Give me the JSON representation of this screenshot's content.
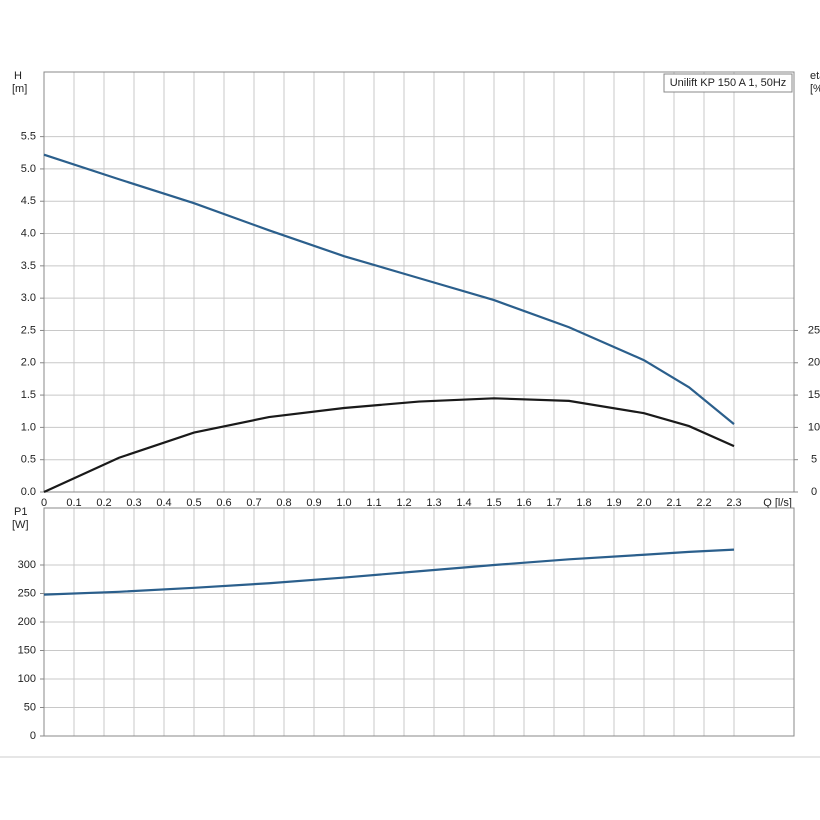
{
  "chart_data": [
    {
      "type": "line",
      "annotation": "Unilift KP 150 A 1, 50Hz",
      "ylabel": "H",
      "yunit": "[m]",
      "y2label": "eta",
      "y2unit": "[%]",
      "xlabel": "Q [l/s]",
      "xlim": [
        0,
        2.5
      ],
      "xticks": [
        0,
        0.1,
        0.2,
        0.3,
        0.4,
        0.5,
        0.6,
        0.7,
        0.8,
        0.9,
        {
          "value": 1,
          "label": "1.0"
        },
        1.1,
        1.2,
        1.3,
        1.4,
        1.5,
        1.6,
        1.7,
        1.8,
        1.9,
        {
          "value": 2,
          "label": "2.0"
        },
        2.1,
        2.2,
        2.3
      ],
      "ylim": [
        0,
        6.5
      ],
      "yticks": [
        {
          "value": 0,
          "label": "0.0"
        },
        0.5,
        {
          "value": 1,
          "label": "1.0"
        },
        1.5,
        {
          "value": 2,
          "label": "2.0"
        },
        2.5,
        {
          "value": 3,
          "label": "3.0"
        },
        3.5,
        {
          "value": 4,
          "label": "4.0"
        },
        4.5,
        {
          "value": 5,
          "label": "5.0"
        },
        5.5
      ],
      "y2lim": [
        0,
        65
      ],
      "y2ticks": [
        0,
        5,
        10,
        15,
        20,
        25
      ],
      "grid": true,
      "series": [
        {
          "name": "H",
          "color": "#2b5f8c",
          "x": [
            0,
            0.25,
            0.5,
            0.75,
            1.0,
            1.25,
            1.5,
            1.75,
            2.0,
            2.15,
            2.3
          ],
          "values": [
            5.22,
            4.84,
            4.47,
            4.05,
            3.65,
            3.31,
            2.97,
            2.55,
            2.04,
            1.62,
            1.05
          ]
        },
        {
          "name": "eta",
          "color": "#1a1a1a",
          "axis": "y2",
          "x": [
            0,
            0.25,
            0.5,
            0.75,
            1.0,
            1.25,
            1.5,
            1.75,
            2.0,
            2.15,
            2.3
          ],
          "values": [
            0,
            5.3,
            9.2,
            11.6,
            13.0,
            14.0,
            14.5,
            14.1,
            12.2,
            10.2,
            7.1
          ]
        }
      ]
    },
    {
      "type": "line",
      "ylabel": "P1",
      "yunit": "[W]",
      "xlim": [
        0,
        2.5
      ],
      "ylim": [
        0,
        400
      ],
      "yticks": [
        0,
        50,
        100,
        150,
        200,
        250,
        300
      ],
      "grid": true,
      "series": [
        {
          "name": "P1",
          "color": "#2b5f8c",
          "x": [
            0,
            0.25,
            0.5,
            0.75,
            1.0,
            1.25,
            1.5,
            1.75,
            2.0,
            2.15,
            2.3
          ],
          "values": [
            248,
            253,
            260,
            268,
            278,
            289,
            300,
            310,
            318,
            323,
            327
          ]
        }
      ]
    }
  ]
}
